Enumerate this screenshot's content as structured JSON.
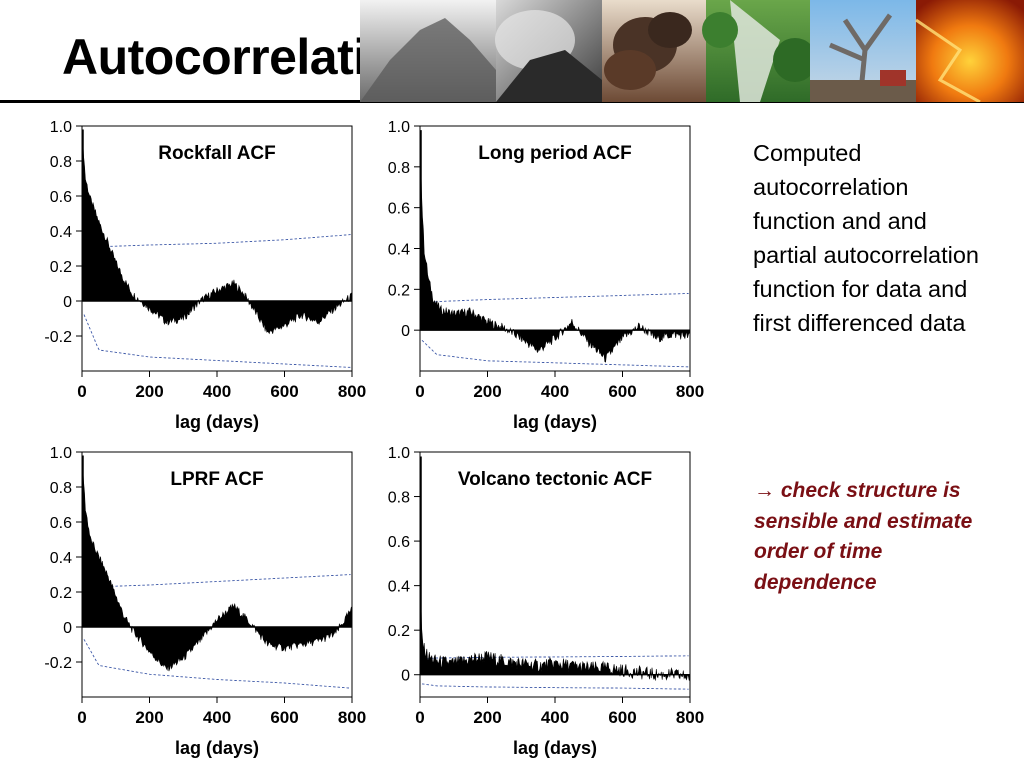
{
  "slide": {
    "title": "Autocorrelations",
    "description": "Computed autocorrelation function and and partial autocorrelation function for data and first differenced data",
    "note_arrow": "→",
    "note": "check structure is sensible and estimate order of time dependence"
  },
  "banner": {
    "panels": [
      "volcano-silhouette-photo",
      "ash-plume-photo",
      "eruption-cloud-photo",
      "forest-ash-photo",
      "dead-tree-photo",
      "lava-photo"
    ]
  },
  "colors": {
    "conf_line": "#3f5aa8",
    "acf_fill": "#000000",
    "note_text": "#7a0f14"
  },
  "chart_data": [
    {
      "type": "area",
      "title": "Rockfall ACF",
      "xlabel": "lag (days)",
      "ylabel": "",
      "xlim": [
        0,
        800
      ],
      "ylim": [
        -0.4,
        1.0
      ],
      "xticks": [
        "0",
        "200",
        "400",
        "600",
        "800"
      ],
      "yticks": [
        "1.0",
        "0.8",
        "0.6",
        "0.4",
        "0.2",
        "0",
        "-0.2"
      ],
      "acf": {
        "x": [
          0,
          10,
          25,
          50,
          75,
          100,
          125,
          150,
          175,
          200,
          250,
          300,
          350,
          400,
          450,
          480,
          500,
          550,
          600,
          650,
          700,
          750,
          800
        ],
        "y": [
          0.98,
          0.7,
          0.58,
          0.45,
          0.34,
          0.22,
          0.12,
          0.04,
          0.0,
          -0.04,
          -0.12,
          -0.1,
          0.0,
          0.06,
          0.1,
          0.04,
          -0.02,
          -0.18,
          -0.14,
          -0.08,
          -0.12,
          -0.04,
          0.03
        ]
      },
      "conf_upper": {
        "x": [
          0,
          50,
          200,
          400,
          600,
          800
        ],
        "y": [
          0.28,
          0.31,
          0.32,
          0.33,
          0.35,
          0.38
        ]
      },
      "conf_lower": {
        "x": [
          0,
          50,
          200,
          400,
          600,
          800
        ],
        "y": [
          -0.05,
          -0.28,
          -0.32,
          -0.34,
          -0.36,
          -0.38
        ]
      }
    },
    {
      "type": "area",
      "title": "Long period ACF",
      "xlabel": "lag (days)",
      "ylabel": "",
      "xlim": [
        0,
        800
      ],
      "ylim": [
        -0.2,
        1.0
      ],
      "xticks": [
        "0",
        "200",
        "400",
        "600",
        "800"
      ],
      "yticks": [
        "1.0",
        "0.8",
        "0.6",
        "0.4",
        "0.2",
        "0"
      ],
      "acf": {
        "x": [
          0,
          5,
          12,
          25,
          40,
          60,
          100,
          150,
          200,
          250,
          300,
          350,
          400,
          450,
          500,
          550,
          600,
          650,
          700,
          750,
          800
        ],
        "y": [
          0.98,
          0.65,
          0.4,
          0.25,
          0.15,
          0.1,
          0.08,
          0.09,
          0.04,
          0.01,
          -0.04,
          -0.1,
          -0.04,
          0.04,
          -0.06,
          -0.14,
          -0.04,
          0.02,
          -0.04,
          -0.02,
          -0.03
        ]
      },
      "conf_upper": {
        "x": [
          0,
          50,
          200,
          400,
          600,
          800
        ],
        "y": [
          0.12,
          0.14,
          0.15,
          0.16,
          0.17,
          0.18
        ]
      },
      "conf_lower": {
        "x": [
          0,
          50,
          200,
          400,
          600,
          800
        ],
        "y": [
          -0.04,
          -0.12,
          -0.15,
          -0.16,
          -0.17,
          -0.18
        ]
      }
    },
    {
      "type": "area",
      "title": "LPRF  ACF",
      "xlabel": "lag (days)",
      "ylabel": "",
      "xlim": [
        0,
        800
      ],
      "ylim": [
        -0.4,
        1.0
      ],
      "xticks": [
        "0",
        "200",
        "400",
        "600",
        "800"
      ],
      "yticks": [
        "1.0",
        "0.8",
        "0.6",
        "0.4",
        "0.2",
        "0",
        "-0.2"
      ],
      "acf": {
        "x": [
          0,
          10,
          25,
          50,
          75,
          100,
          125,
          150,
          175,
          200,
          250,
          300,
          350,
          400,
          450,
          500,
          550,
          600,
          650,
          700,
          750,
          800
        ],
        "y": [
          0.98,
          0.68,
          0.5,
          0.4,
          0.3,
          0.18,
          0.06,
          -0.02,
          -0.08,
          -0.14,
          -0.24,
          -0.18,
          -0.08,
          0.04,
          0.12,
          0.02,
          -0.1,
          -0.12,
          -0.1,
          -0.08,
          -0.04,
          0.1
        ]
      },
      "conf_upper": {
        "x": [
          0,
          50,
          200,
          400,
          600,
          800
        ],
        "y": [
          0.22,
          0.23,
          0.24,
          0.26,
          0.28,
          0.3
        ]
      },
      "conf_lower": {
        "x": [
          0,
          50,
          200,
          400,
          600,
          800
        ],
        "y": [
          -0.05,
          -0.22,
          -0.27,
          -0.3,
          -0.32,
          -0.35
        ]
      }
    },
    {
      "type": "area",
      "title": "Volcano tectonic ACF",
      "xlabel": "lag (days)",
      "ylabel": "",
      "xlim": [
        0,
        800
      ],
      "ylim": [
        -0.1,
        1.0
      ],
      "xticks": [
        "0",
        "200",
        "400",
        "600",
        "800"
      ],
      "yticks": [
        "1.0",
        "0.8",
        "0.6",
        "0.4",
        "0.2",
        "0"
      ],
      "acf": {
        "x": [
          0,
          3,
          10,
          25,
          50,
          100,
          150,
          200,
          250,
          300,
          350,
          400,
          450,
          500,
          550,
          600,
          650,
          700,
          750,
          800
        ],
        "y": [
          0.98,
          0.22,
          0.12,
          0.08,
          0.06,
          0.05,
          0.07,
          0.08,
          0.06,
          0.05,
          0.04,
          0.05,
          0.04,
          0.03,
          0.03,
          0.02,
          0.01,
          0.0,
          0.0,
          -0.01
        ]
      },
      "conf_upper": {
        "x": [
          0,
          50,
          200,
          400,
          600,
          800
        ],
        "y": [
          0.07,
          0.075,
          0.078,
          0.08,
          0.082,
          0.085
        ]
      },
      "conf_lower": {
        "x": [
          0,
          50,
          200,
          400,
          600,
          800
        ],
        "y": [
          -0.04,
          -0.05,
          -0.055,
          -0.058,
          -0.06,
          -0.065
        ]
      }
    }
  ]
}
